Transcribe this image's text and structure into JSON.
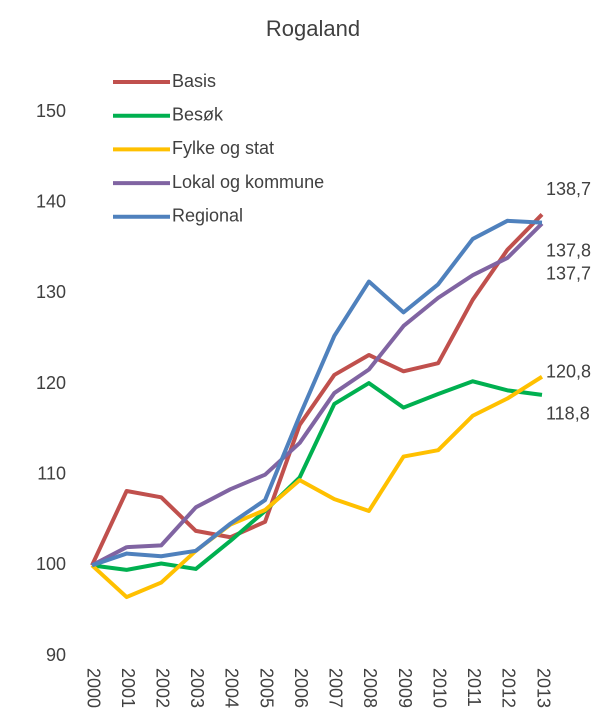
{
  "chart_data": {
    "type": "line",
    "title": "Rogaland",
    "categories": [
      "2000",
      "2001",
      "2002",
      "2003",
      "2004",
      "2005",
      "2006",
      "2007",
      "2008",
      "2009",
      "2010",
      "2011",
      "2012",
      "2013"
    ],
    "series": [
      {
        "name": "Basis",
        "color": "#c0504d",
        "values": [
          100,
          108.2,
          107.5,
          103.8,
          103.1,
          104.8,
          115.5,
          121,
          123.2,
          121.4,
          122.3,
          129.3,
          134.8,
          138.7
        ],
        "value_labels": [
          null,
          null,
          null,
          null,
          null,
          null,
          null,
          null,
          null,
          null,
          null,
          null,
          null,
          "138,7"
        ]
      },
      {
        "name": "Besøk",
        "color": "#00b050",
        "values": [
          100,
          99.5,
          100.2,
          99.6,
          102.7,
          106,
          109.7,
          117.8,
          120.1,
          117.4,
          118.9,
          120.3,
          119.3,
          118.8
        ],
        "value_labels": [
          null,
          null,
          null,
          null,
          null,
          null,
          null,
          null,
          null,
          null,
          null,
          null,
          null,
          "118,8"
        ]
      },
      {
        "name": "Fylke og stat",
        "color": "#ffc000",
        "values": [
          100,
          96.5,
          98.1,
          101.6,
          104.5,
          106.1,
          109.4,
          107.3,
          106,
          112,
          112.7,
          116.5,
          118.4,
          120.8
        ],
        "value_labels": [
          null,
          null,
          null,
          null,
          null,
          null,
          null,
          null,
          null,
          null,
          null,
          null,
          null,
          "120,8"
        ]
      },
      {
        "name": "Lokal og kommune",
        "color": "#8064a2",
        "values": [
          100,
          102,
          102.2,
          106.4,
          108.4,
          110,
          113.5,
          119,
          121.6,
          126.4,
          129.5,
          132,
          133.9,
          137.7
        ],
        "value_labels": [
          null,
          null,
          null,
          null,
          null,
          null,
          null,
          null,
          null,
          null,
          null,
          null,
          null,
          "137,7"
        ]
      },
      {
        "name": "Regional",
        "color": "#4f81bd",
        "values": [
          100,
          101.3,
          101,
          101.6,
          104.6,
          107.2,
          116.5,
          125.3,
          131.3,
          127.9,
          131,
          136,
          138,
          137.8
        ],
        "value_labels": [
          null,
          null,
          null,
          null,
          null,
          null,
          null,
          null,
          null,
          null,
          null,
          null,
          null,
          "137,8"
        ]
      }
    ],
    "ylim": [
      90,
      150
    ],
    "yticks": [
      90,
      100,
      110,
      120,
      130,
      140,
      150
    ],
    "grid": false,
    "legend": "top-left"
  }
}
